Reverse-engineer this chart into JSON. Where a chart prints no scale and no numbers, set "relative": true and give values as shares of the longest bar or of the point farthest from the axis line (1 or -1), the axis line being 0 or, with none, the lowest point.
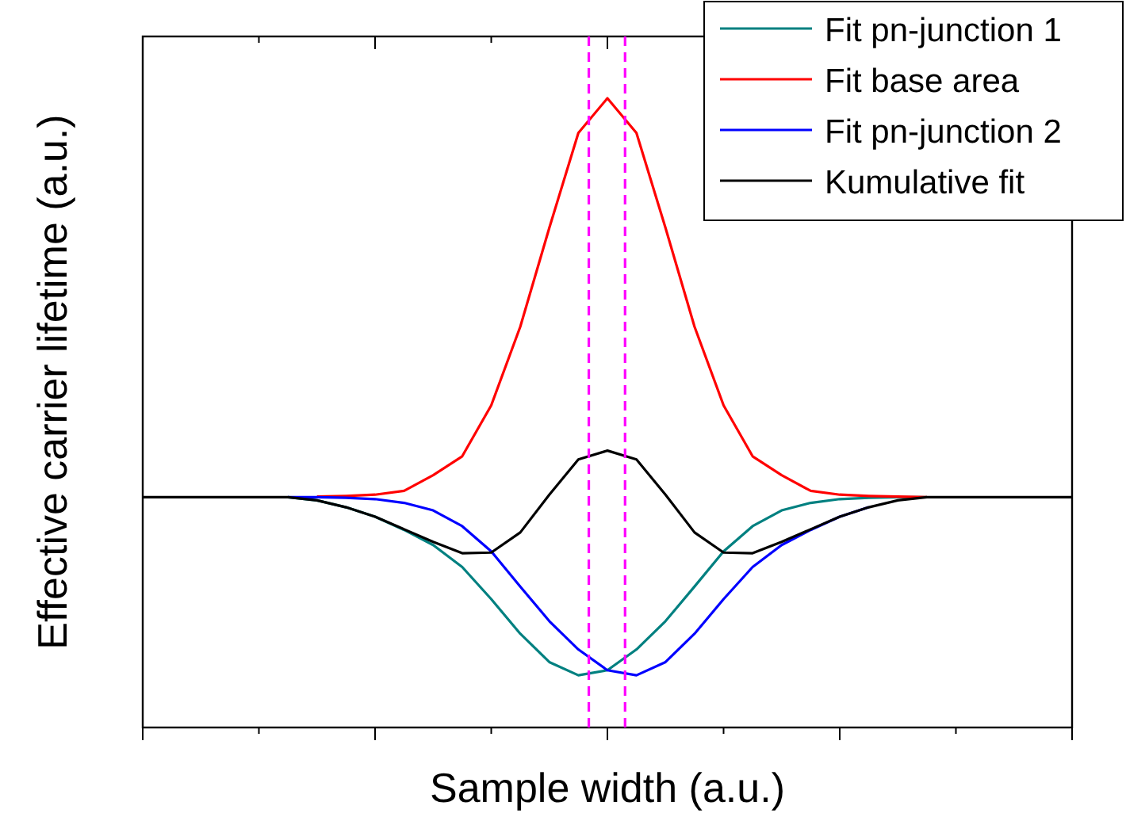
{
  "chart_data": {
    "type": "line",
    "relative": true,
    "xlabel": "Sample width (a.u.)",
    "ylabel": "Effective carrier lifetime (a.u.)",
    "categories": [
      null,
      null,
      null,
      null,
      null,
      null,
      null,
      null,
      null,
      null,
      null,
      null,
      null,
      null,
      null,
      null,
      null,
      null,
      null,
      null,
      null,
      null,
      null,
      null,
      null,
      null,
      null,
      null,
      null,
      null,
      null,
      null,
      null
    ],
    "legend": "top right",
    "series": [
      {
        "name": "Fit pn-junction 1",
        "color": "#008080",
        "values": [
          null,
          null,
          null,
          null,
          null,
          0.366,
          0.361,
          0.35,
          0.335,
          0.314,
          0.29,
          0.255,
          0.204,
          0.149,
          0.104,
          0.083,
          0.091,
          0.124,
          0.169,
          0.224,
          0.28,
          0.32,
          0.345,
          0.357,
          0.363,
          0.365,
          0.366,
          0.366,
          null,
          null,
          null,
          null,
          null
        ]
      },
      {
        "name": "Fit base area",
        "color": "#ff0000",
        "values": [
          null,
          null,
          null,
          null,
          null,
          null,
          0.367,
          0.368,
          0.37,
          0.376,
          0.401,
          0.431,
          0.512,
          0.637,
          0.794,
          0.945,
          1,
          0.945,
          0.794,
          0.637,
          0.512,
          0.431,
          0.401,
          0.376,
          0.37,
          0.368,
          0.367,
          0.366,
          null,
          null,
          null,
          null,
          null
        ]
      },
      {
        "name": "Fit pn-junction 2",
        "color": "#0000ff",
        "values": [
          null,
          null,
          null,
          null,
          null,
          0.366,
          0.366,
          0.365,
          0.363,
          0.357,
          0.345,
          0.32,
          0.28,
          0.224,
          0.169,
          0.124,
          0.091,
          0.083,
          0.104,
          0.149,
          0.204,
          0.255,
          0.29,
          0.314,
          0.335,
          0.35,
          null,
          null,
          null,
          null,
          null,
          null,
          null
        ]
      },
      {
        "name": "Kumulative fit",
        "color": "#000000",
        "values": [
          0.366,
          0.366,
          0.366,
          0.366,
          0.366,
          0.366,
          0.361,
          0.35,
          0.335,
          0.315,
          0.295,
          0.277,
          0.278,
          0.31,
          0.37,
          0.426,
          0.44,
          0.426,
          0.37,
          0.31,
          0.278,
          0.277,
          0.295,
          0.315,
          0.335,
          0.35,
          0.361,
          0.366,
          0.366,
          0.366,
          0.366,
          0.366,
          0.366
        ]
      }
    ]
  }
}
